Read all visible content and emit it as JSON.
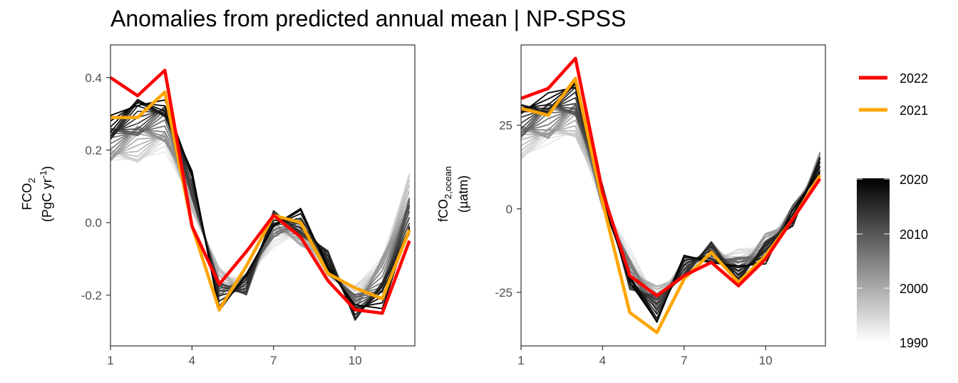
{
  "title": "Anomalies from predicted annual mean | NP-SPSS",
  "legend": {
    "highlight": [
      {
        "label": "2022",
        "color": "#ff0000"
      },
      {
        "label": "2021",
        "color": "#ffa500"
      }
    ],
    "colorbar": {
      "ticks": [
        "2020",
        "2010",
        "2000",
        "1990"
      ],
      "range": [
        1990,
        2020
      ],
      "low_color": "#ffffff",
      "high_color": "#000000"
    }
  },
  "chart_data": [
    {
      "type": "line",
      "title": "",
      "ylabel_line1": "FCO",
      "ylabel_line1_sub": "2",
      "ylabel_line2": "(PgC yr",
      "ylabel_line2_sup": "-1",
      "ylabel_line2_end": ")",
      "xlim": [
        1,
        12.2
      ],
      "ylim": [
        -0.34,
        0.49
      ],
      "xticks": [
        "1",
        "4",
        "7",
        "10"
      ],
      "yticks": [
        "0.4",
        "0.2",
        "0.0",
        "-0.2"
      ],
      "x": [
        1,
        2,
        3,
        4,
        5,
        6,
        7,
        8,
        9,
        10,
        11,
        12
      ],
      "background_years": {
        "first_year": 1990,
        "early_profile": [
          0.16,
          0.18,
          0.2,
          0.05,
          -0.14,
          -0.17,
          -0.04,
          -0.05,
          -0.13,
          -0.2,
          -0.08,
          0.12
        ],
        "late_profile": [
          0.28,
          0.33,
          0.34,
          0.12,
          -0.22,
          -0.17,
          0.02,
          0.01,
          -0.1,
          -0.25,
          -0.22,
          -0.02
        ]
      },
      "series": [
        {
          "name": "2022",
          "color": "#ff0000",
          "values": [
            0.4,
            0.35,
            0.42,
            -0.01,
            -0.17,
            -0.08,
            0.02,
            -0.04,
            -0.16,
            -0.24,
            -0.25,
            -0.05
          ]
        },
        {
          "name": "2021",
          "color": "#ffa500",
          "values": [
            0.29,
            0.29,
            0.36,
            -0.01,
            -0.24,
            -0.12,
            0.02,
            0.0,
            -0.14,
            -0.18,
            -0.21,
            -0.02
          ]
        }
      ]
    },
    {
      "type": "line",
      "title": "",
      "ylabel_line1": "fCO",
      "ylabel_line1_sub": "2,ocean",
      "ylabel_line2": "(µatm)",
      "ylabel_line2_sup": "",
      "ylabel_line2_end": "",
      "xlim": [
        1,
        12.2
      ],
      "ylim": [
        -41,
        49
      ],
      "xticks": [
        "1",
        "4",
        "7",
        "10"
      ],
      "yticks": [
        "25",
        "0",
        "-25"
      ],
      "x": [
        1,
        2,
        3,
        4,
        5,
        6,
        7,
        8,
        9,
        10,
        11,
        12
      ],
      "background_years": {
        "first_year": 1990,
        "early_profile": [
          17,
          19,
          23,
          2,
          -14,
          -25,
          -18,
          -13,
          -15,
          -9,
          -2,
          15
        ],
        "late_profile": [
          30,
          34,
          36,
          5,
          -24,
          -31,
          -17,
          -13,
          -20,
          -14,
          -2,
          12
        ]
      },
      "series": [
        {
          "name": "2022",
          "color": "#ff0000",
          "values": [
            33,
            36,
            45,
            5,
            -20,
            -26,
            -20,
            -16,
            -23,
            -15,
            -3,
            9
          ]
        },
        {
          "name": "2021",
          "color": "#ffa500",
          "values": [
            30,
            28,
            39,
            2,
            -31,
            -37,
            -21,
            -13,
            -22,
            -14,
            -3,
            10
          ]
        }
      ]
    }
  ]
}
